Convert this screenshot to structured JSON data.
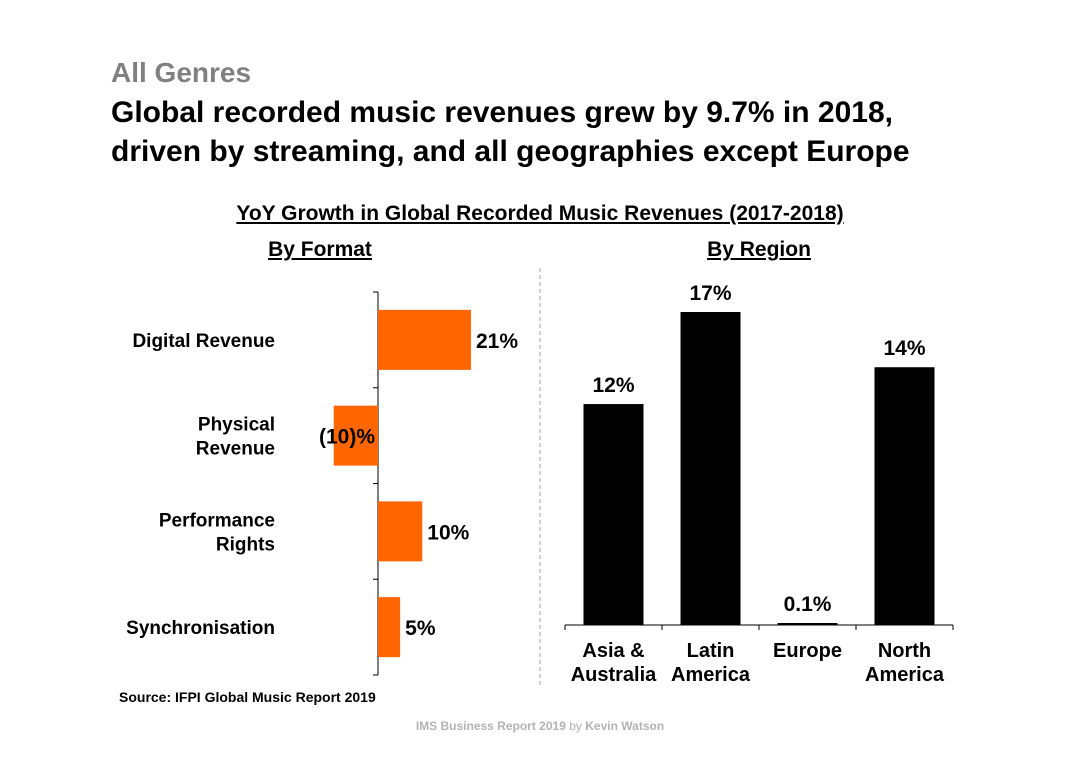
{
  "header": {
    "kicker": "All Genres",
    "headline_line1": "Global recorded music revenues grew by 9.7% in 2018,",
    "headline_line2": "driven by streaming, and all geographies except Europe",
    "chart_title": "YoY Growth in Global Recorded Music Revenues (2017-2018)"
  },
  "colors": {
    "format_bar": "#FF6600",
    "region_bar": "#000000",
    "kicker": "#808080",
    "footer": "#B3B3B3"
  },
  "chart_data": [
    {
      "type": "bar",
      "orientation": "horizontal",
      "title": "By Format",
      "categories": [
        [
          "Digital Revenue"
        ],
        [
          "Physical",
          "Revenue"
        ],
        [
          "Performance",
          "Rights"
        ],
        [
          "Synchronisation"
        ]
      ],
      "values": [
        21,
        -10,
        10,
        5
      ],
      "data_labels": [
        "21%",
        "(10)%",
        "10%",
        "5%"
      ],
      "unit": "%",
      "xlim": [
        -10,
        21
      ]
    },
    {
      "type": "bar",
      "orientation": "vertical",
      "title": "By Region",
      "categories": [
        [
          "Asia &",
          "Australia"
        ],
        [
          "Latin",
          "America"
        ],
        [
          "Europe"
        ],
        [
          "North",
          "America"
        ]
      ],
      "values": [
        12,
        17,
        0.1,
        14
      ],
      "data_labels": [
        "12%",
        "17%",
        "0.1%",
        "14%"
      ],
      "unit": "%",
      "ylim": [
        0,
        17
      ]
    }
  ],
  "footer": {
    "source": "Source: IFPI Global Music Report 2019",
    "credit_main": "IMS Business Report 2019",
    "credit_by": "by",
    "credit_author": "Kevin Watson"
  }
}
